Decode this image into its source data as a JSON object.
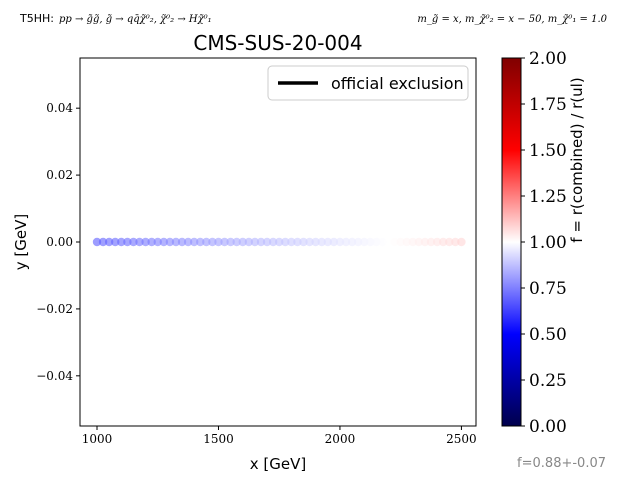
{
  "header": {
    "process_prefix": "T5HH:",
    "process": "pp → g̃g̃, g̃ → qq̄χ̃⁰₂, χ̃⁰₂ → Hχ̃⁰₁",
    "masses": "m_g̃ = x, m_χ̃⁰₂ = x − 50, m_χ̃⁰₁ = 1.0"
  },
  "footer": {
    "f_value": "f=0.88+-0.07"
  },
  "chart_data": {
    "type": "scatter",
    "title": "CMS-SUS-20-004",
    "xlabel": "x [GeV]",
    "ylabel": "y [GeV]",
    "xlim": [
      930,
      2560
    ],
    "ylim": [
      -0.055,
      0.055
    ],
    "xticks": [
      "1000",
      "1500",
      "2000",
      "2500"
    ],
    "yticks": [
      "0.04",
      "0.02",
      "0.00",
      "−0.02",
      "−0.04"
    ],
    "grid": false,
    "legend": {
      "placement": "top-right",
      "entries": [
        "official exclusion"
      ]
    },
    "series": [
      {
        "x_start": 1000,
        "x_end": 2500,
        "x_step": 25,
        "y": 0.0,
        "f_start": 0.68,
        "f_end": 1.08
      }
    ],
    "colorbar": {
      "label": "f = r(combined) / r(ul)",
      "range": [
        0.0,
        2.0
      ],
      "ticks": [
        "0.00",
        "0.25",
        "0.50",
        "0.75",
        "1.00",
        "1.25",
        "1.50",
        "1.75",
        "2.00"
      ],
      "colormap": "seismic"
    }
  }
}
